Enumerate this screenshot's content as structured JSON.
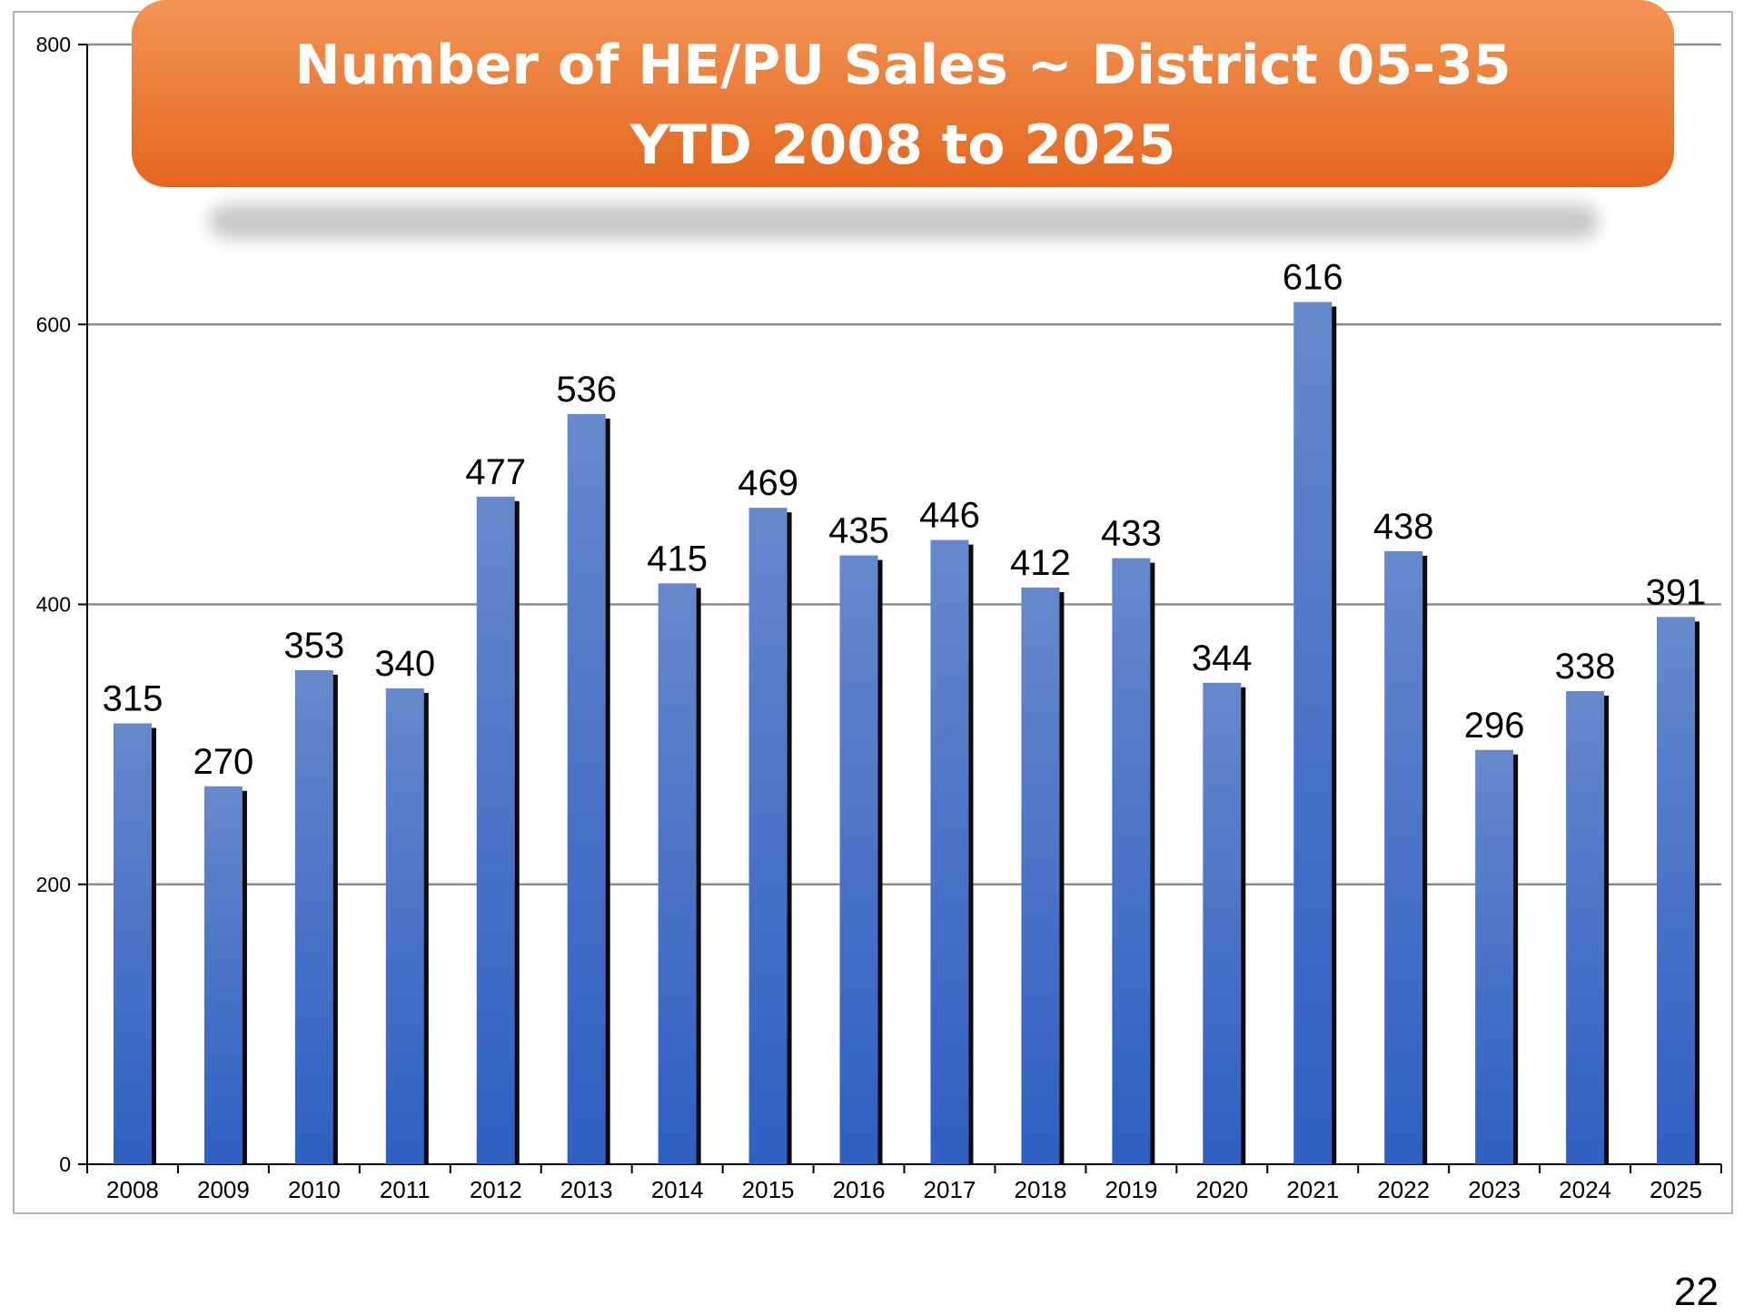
{
  "chart_data": {
    "type": "bar",
    "title_lines": [
      "Number of HE/PU Sales ~ District 05-35",
      "YTD 2008 to 2025"
    ],
    "categories": [
      "2008",
      "2009",
      "2010",
      "2011",
      "2012",
      "2013",
      "2014",
      "2015",
      "2016",
      "2017",
      "2018",
      "2019",
      "2020",
      "2021",
      "2022",
      "2023",
      "2024",
      "2025"
    ],
    "values": [
      315,
      270,
      353,
      340,
      477,
      536,
      415,
      469,
      435,
      446,
      412,
      433,
      344,
      616,
      438,
      296,
      338,
      391
    ],
    "ylim": [
      0,
      800
    ],
    "yticks": [
      0,
      200,
      400,
      600,
      800
    ],
    "grid": true,
    "data_labels": true,
    "xlabel": "",
    "ylabel": "",
    "colors": {
      "bar_top": "#6688cc",
      "bar_bottom": "#2f5fc4",
      "bar_shadow": "#0a0a0a",
      "title_bg_top": "#f29455",
      "title_bg_bottom": "#e4661e",
      "grid": "#8c8c8c"
    }
  },
  "page_number": "22"
}
